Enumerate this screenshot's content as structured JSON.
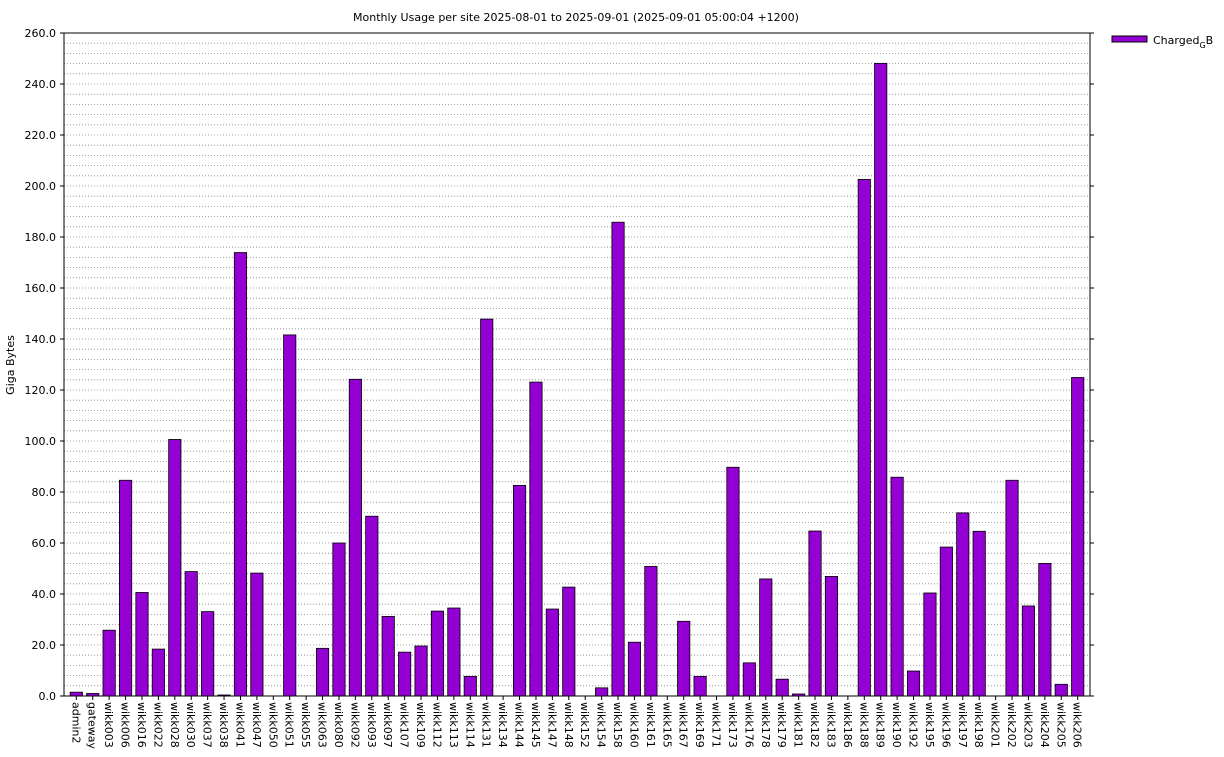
{
  "chart_data": {
    "type": "bar",
    "title": "Monthly Usage per site 2025-08-01 to 2025-09-01 (2025-09-01 05:00:04 +1200)",
    "xlabel": "",
    "ylabel": "Giga Bytes",
    "ylim": [
      0,
      260
    ],
    "yticks": [
      "0.0",
      "20.0",
      "40.0",
      "60.0",
      "80.0",
      "100.0",
      "120.0",
      "140.0",
      "160.0",
      "180.0",
      "200.0",
      "220.0",
      "240.0",
      "260.0"
    ],
    "grid": "horizontal dotted, minor every 4",
    "legend_position": "top-right outside",
    "series": [
      {
        "name": "Charged",
        "name_subscript": "G",
        "name_suffix": "B",
        "color": "#9400d3",
        "values": [
          1.5,
          1.0,
          25.8,
          84.6,
          40.6,
          18.4,
          100.6,
          48.8,
          33.1,
          0.4,
          173.9,
          48.2,
          0,
          141.6,
          0,
          18.7,
          60.0,
          124.2,
          70.5,
          31.2,
          17.2,
          19.6,
          33.3,
          34.5,
          7.7,
          147.8,
          0,
          82.6,
          123.1,
          34.1,
          42.7,
          0,
          3.2,
          185.8,
          21.1,
          50.8,
          0,
          29.3,
          7.7,
          0,
          89.7,
          13.0,
          45.9,
          6.6,
          0.8,
          64.7,
          46.9,
          0,
          202.6,
          248.1,
          85.8,
          9.8,
          40.4,
          58.4,
          71.8,
          64.6,
          0,
          84.6,
          35.3,
          52.0,
          4.6,
          124.9
        ]
      }
    ],
    "categories": [
      "admin2",
      "gateway",
      "wikk003",
      "wikk006",
      "wikk016",
      "wikk022",
      "wikk028",
      "wikk030",
      "wikk037",
      "wikk038",
      "wikk041",
      "wikk047",
      "wikk050",
      "wikk051",
      "wikk055",
      "wikk063",
      "wikk080",
      "wikk092",
      "wikk093",
      "wikk097",
      "wikk107",
      "wikk109",
      "wikk112",
      "wikk113",
      "wikk114",
      "wikk131",
      "wikk134",
      "wikk144",
      "wikk145",
      "wikk147",
      "wikk148",
      "wikk152",
      "wikk154",
      "wikk158",
      "wikk160",
      "wikk161",
      "wikk165",
      "wikk167",
      "wikk169",
      "wikk171",
      "wikk173",
      "wikk176",
      "wikk178",
      "wikk179",
      "wikk181",
      "wikk182",
      "wikk183",
      "wikk186",
      "wikk188",
      "wikk189",
      "wikk190",
      "wikk192",
      "wikk195",
      "wikk196",
      "wikk197",
      "wikk198",
      "wikk201",
      "wikk202",
      "wikk203",
      "wikk204",
      "wikk205",
      "wikk206"
    ]
  }
}
